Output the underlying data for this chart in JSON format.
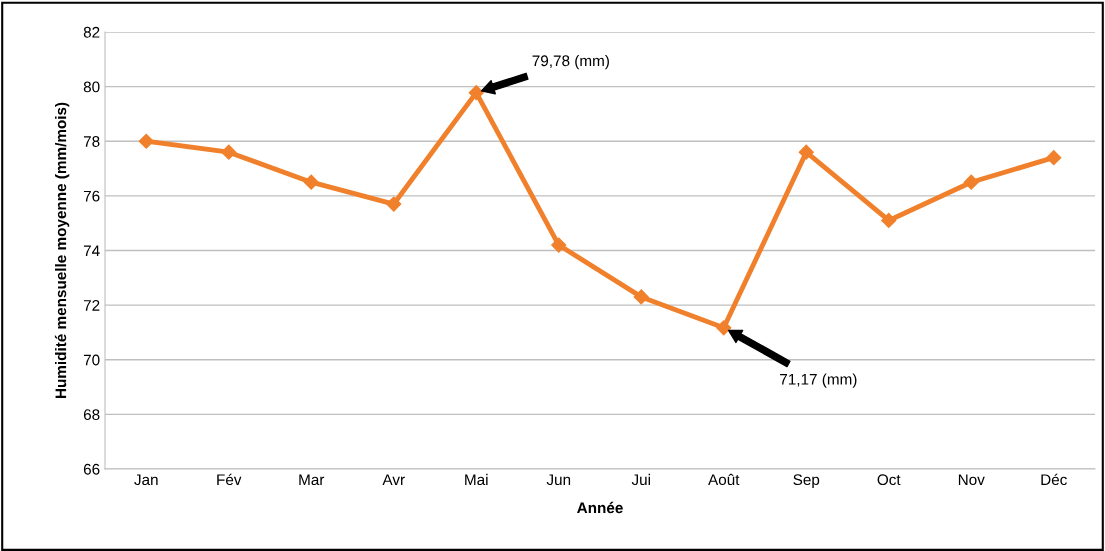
{
  "chart_data": {
    "type": "line",
    "categories": [
      "Jan",
      "Fév",
      "Mar",
      "Avr",
      "Mai",
      "Jun",
      "Jui",
      "Août",
      "Sep",
      "Oct",
      "Nov",
      "Déc"
    ],
    "series": [
      {
        "color": "#f0802b",
        "values": [
          78.0,
          77.6,
          76.5,
          75.7,
          79.78,
          74.2,
          72.3,
          71.17,
          77.6,
          75.1,
          76.5,
          77.4
        ]
      }
    ],
    "xlabel": "Année",
    "ylabel": "Humidité mensuelle moyenne (mm/mois)",
    "ylim": [
      66,
      82
    ],
    "yticks": [
      66,
      68,
      70,
      72,
      74,
      76,
      78,
      80,
      82
    ],
    "grid": "y",
    "marker": "diamond",
    "line_style": "solid",
    "annotations": [
      "79,78 (mm)",
      "71,17 (mm)"
    ]
  }
}
